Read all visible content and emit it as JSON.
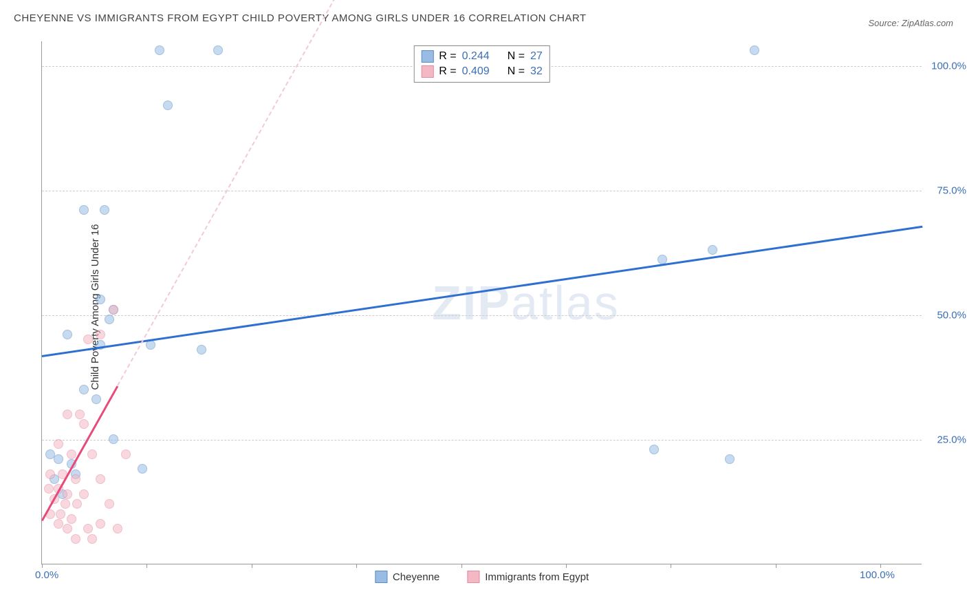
{
  "title": "CHEYENNE VS IMMIGRANTS FROM EGYPT CHILD POVERTY AMONG GIRLS UNDER 16 CORRELATION CHART",
  "source": "Source: ZipAtlas.com",
  "ylabel": "Child Poverty Among Girls Under 16",
  "watermark_bold": "ZIP",
  "watermark_rest": "atlas",
  "chart": {
    "type": "scatter",
    "xlim": [
      0,
      105
    ],
    "ylim": [
      0,
      105
    ],
    "x_ticks": [
      0,
      50,
      100
    ],
    "x_tick_labels": [
      "0.0%",
      "",
      "100.0%"
    ],
    "x_minor_ticks": [
      12.5,
      25,
      37.5,
      62.5,
      75,
      87.5
    ],
    "y_ticks": [
      25,
      50,
      75,
      100
    ],
    "y_tick_labels": [
      "25.0%",
      "50.0%",
      "75.0%",
      "100.0%"
    ],
    "grid_color": "#cccccc",
    "background_color": "#ffffff",
    "axis_label_color": "#3b6fb6",
    "marker_size": 14,
    "marker_opacity": 0.55,
    "series": [
      {
        "name": "Cheyenne",
        "fill_color": "#99bce5",
        "stroke_color": "#5a8cc9",
        "R": "0.244",
        "N": "27",
        "trend": {
          "x1": 0,
          "y1": 42,
          "x2": 105,
          "y2": 68,
          "solid_color": "#2f6fd0",
          "dash_color": "#c9dceb",
          "line_width": 2.5
        },
        "points": [
          [
            14,
            103
          ],
          [
            21,
            103
          ],
          [
            85,
            103
          ],
          [
            15,
            92
          ],
          [
            5,
            71
          ],
          [
            7.5,
            71
          ],
          [
            74,
            61
          ],
          [
            80,
            63
          ],
          [
            7,
            53
          ],
          [
            8.5,
            51
          ],
          [
            8,
            49
          ],
          [
            3,
            46
          ],
          [
            7,
            44
          ],
          [
            13,
            44
          ],
          [
            19,
            43
          ],
          [
            5,
            35
          ],
          [
            6.5,
            33
          ],
          [
            8.5,
            25
          ],
          [
            73,
            23
          ],
          [
            82,
            21
          ],
          [
            1,
            22
          ],
          [
            2,
            21
          ],
          [
            3.5,
            20
          ],
          [
            4,
            18
          ],
          [
            12,
            19
          ],
          [
            1.5,
            17
          ],
          [
            2.5,
            14
          ]
        ]
      },
      {
        "name": "Immigrants from Egypt",
        "fill_color": "#f4b8c4",
        "stroke_color": "#e58aa0",
        "R": "0.409",
        "N": "32",
        "trend": {
          "x1": 0,
          "y1": 9,
          "x2": 9,
          "y2": 36,
          "solid_color": "#e84a7a",
          "dash_color": "#f4c9d4",
          "line_width": 2.5,
          "dash_extend_x": 45,
          "dash_extend_y": 144
        },
        "points": [
          [
            8.5,
            51
          ],
          [
            7,
            46
          ],
          [
            5.5,
            45
          ],
          [
            3,
            30
          ],
          [
            4.5,
            30
          ],
          [
            5,
            28
          ],
          [
            2,
            24
          ],
          [
            3.5,
            22
          ],
          [
            6,
            22
          ],
          [
            10,
            22
          ],
          [
            1,
            18
          ],
          [
            2.5,
            18
          ],
          [
            4,
            17
          ],
          [
            7,
            17
          ],
          [
            0.8,
            15
          ],
          [
            2,
            15
          ],
          [
            3,
            14
          ],
          [
            5,
            14
          ],
          [
            1.5,
            13
          ],
          [
            2.8,
            12
          ],
          [
            4.2,
            12
          ],
          [
            8,
            12
          ],
          [
            1,
            10
          ],
          [
            2.2,
            10
          ],
          [
            3.5,
            9
          ],
          [
            2,
            8
          ],
          [
            3,
            7
          ],
          [
            5.5,
            7
          ],
          [
            7,
            8
          ],
          [
            4,
            5
          ],
          [
            6,
            5
          ],
          [
            9,
            7
          ]
        ]
      }
    ]
  },
  "stats_labels": {
    "R": "R =",
    "N": "N ="
  },
  "legend": {
    "series1": "Cheyenne",
    "series2": "Immigrants from Egypt"
  }
}
